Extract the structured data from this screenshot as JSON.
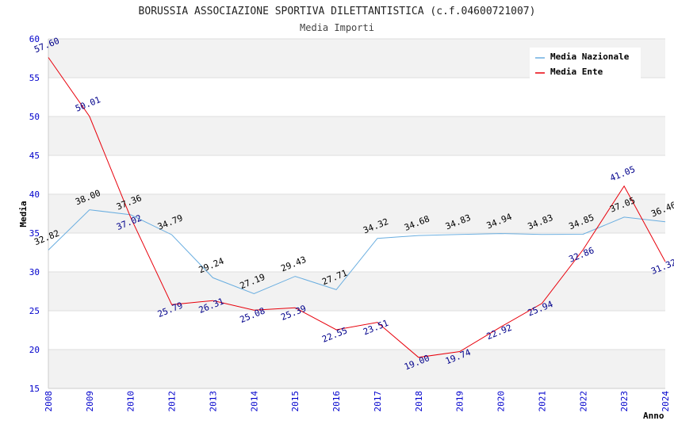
{
  "chart_data": {
    "type": "line",
    "title": "BORUSSIA ASSOCIAZIONE SPORTIVA DILETTANTISTICA (c.f.04600721007)",
    "subtitle": "Media Importi",
    "xlabel": "Anno",
    "ylabel": "Media",
    "ylim": [
      15,
      60
    ],
    "yticks": [
      15,
      20,
      25,
      30,
      35,
      40,
      45,
      50,
      55,
      60
    ],
    "grid": true,
    "legend_position": "top-right",
    "categories": [
      "2008",
      "2009",
      "2010",
      "2012",
      "2013",
      "2014",
      "2015",
      "2016",
      "2017",
      "2018",
      "2019",
      "2020",
      "2021",
      "2022",
      "2023",
      "2024"
    ],
    "series": [
      {
        "name": "Media Nazionale",
        "color": "#6aaee0",
        "label_color": "#000000",
        "values": [
          32.82,
          38.0,
          37.36,
          34.79,
          29.24,
          27.19,
          29.43,
          27.71,
          34.32,
          34.68,
          34.83,
          34.94,
          34.83,
          34.85,
          37.05,
          36.46
        ],
        "labels": [
          "32.82",
          "38.00",
          "37.36",
          "34.79",
          "29.24",
          "27.19",
          "29.43",
          "27.71",
          "34.32",
          "34.68",
          "34.83",
          "34.94",
          "34.83",
          "34.85",
          "37.05",
          "36.46"
        ]
      },
      {
        "name": "Media Ente",
        "color": "#e8000b",
        "label_color": "#00008b",
        "values": [
          57.6,
          50.01,
          37.02,
          25.79,
          26.31,
          25.08,
          25.39,
          22.55,
          23.51,
          19.0,
          19.74,
          22.92,
          25.94,
          32.86,
          41.05,
          31.32
        ],
        "labels": [
          "57.60",
          "50.01",
          "37.02",
          "25.79",
          "26.31",
          "25.08",
          "25.39",
          "22.55",
          "23.51",
          "19.00",
          "19.74",
          "22.92",
          "25.94",
          "32.86",
          "41.05",
          "31.32"
        ]
      }
    ]
  },
  "colors": {
    "tick_text": "#0000cc",
    "band_shade": "#f2f2f2",
    "grid_line": "#dddddd"
  }
}
